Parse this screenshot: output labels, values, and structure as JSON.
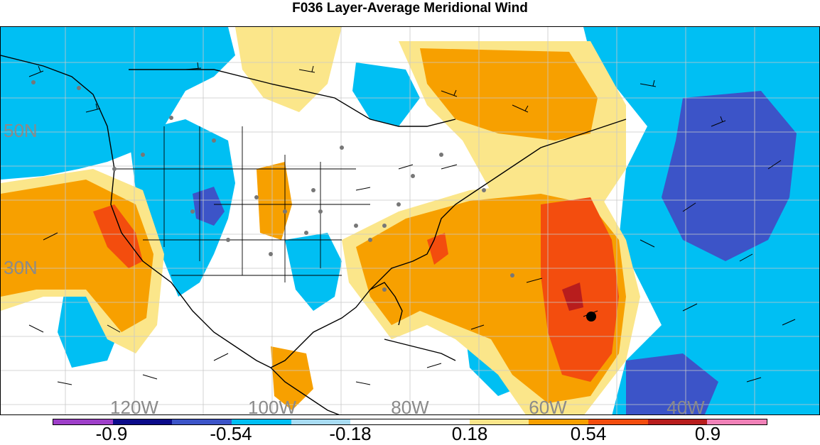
{
  "title": "F036 Layer-Average Meridional Wind",
  "map": {
    "lat_labels": [
      {
        "text": "50N",
        "id": "lat-50n"
      },
      {
        "text": "30N",
        "id": "lat-30n"
      }
    ],
    "lon_labels": [
      {
        "text": "120W",
        "id": "lon-120w"
      },
      {
        "text": "100W",
        "id": "lon-100w"
      },
      {
        "text": "80W",
        "id": "lon-80w"
      },
      {
        "text": "60W",
        "id": "lon-60w"
      },
      {
        "text": "40W",
        "id": "lon-40w"
      }
    ]
  },
  "colorbar": {
    "colors": [
      "#9e3fc9",
      "#0b0b8a",
      "#3c54c8",
      "#00bff3",
      "#a8dcf2",
      "#ffffff",
      "#ffffff",
      "#fbe68a",
      "#f7a000",
      "#f34d0e",
      "#b81d1d",
      "#f081b8"
    ],
    "ticks": [
      "-0.9",
      "-0.54",
      "-0.18",
      "0.18",
      "0.54",
      "0.9"
    ]
  },
  "marker_label": "storm-center-marker"
}
